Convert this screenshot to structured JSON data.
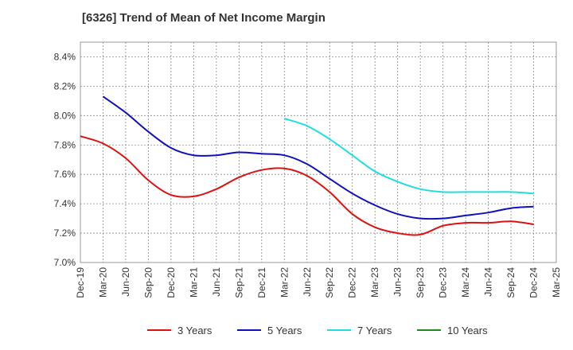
{
  "chart_data": {
    "type": "line",
    "title": "[6326]  Trend of Mean of Net Income Margin",
    "xlabel": "",
    "ylabel": "",
    "x": [
      "Dec-19",
      "Mar-20",
      "Jun-20",
      "Sep-20",
      "Dec-20",
      "Mar-21",
      "Jun-21",
      "Sep-21",
      "Dec-21",
      "Mar-22",
      "Jun-22",
      "Sep-22",
      "Dec-22",
      "Mar-23",
      "Jun-23",
      "Sep-23",
      "Dec-23",
      "Mar-24",
      "Jun-24",
      "Sep-24",
      "Dec-24",
      "Mar-25"
    ],
    "ylim": [
      7.0,
      8.5
    ],
    "yticks": [
      "7.0%",
      "7.2%",
      "7.4%",
      "7.6%",
      "7.8%",
      "8.0%",
      "8.2%",
      "8.4%"
    ],
    "ytick_values": [
      7.0,
      7.2,
      7.4,
      7.6,
      7.8,
      8.0,
      8.2,
      8.4
    ],
    "grid": true,
    "legend_position": "bottom",
    "series": [
      {
        "name": "3 Years",
        "color": "#dd1111",
        "values": [
          7.86,
          7.81,
          7.71,
          7.56,
          7.46,
          7.45,
          7.5,
          7.58,
          7.63,
          7.64,
          7.59,
          7.48,
          7.33,
          7.24,
          7.2,
          7.19,
          7.25,
          7.27,
          7.27,
          7.28,
          7.26,
          null
        ]
      },
      {
        "name": "5 Years",
        "color": "#1111bb",
        "values": [
          null,
          8.13,
          8.02,
          7.89,
          7.78,
          7.73,
          7.73,
          7.75,
          7.74,
          7.73,
          7.67,
          7.57,
          7.47,
          7.39,
          7.33,
          7.3,
          7.3,
          7.32,
          7.34,
          7.37,
          7.38,
          null
        ]
      },
      {
        "name": "7 Years",
        "color": "#22dddd",
        "values": [
          null,
          null,
          null,
          null,
          null,
          null,
          null,
          null,
          null,
          7.98,
          7.93,
          7.84,
          7.73,
          7.62,
          7.55,
          7.5,
          7.48,
          7.48,
          7.48,
          7.48,
          7.47,
          null
        ]
      },
      {
        "name": "10 Years",
        "color": "#228822",
        "values": [
          null,
          null,
          null,
          null,
          null,
          null,
          null,
          null,
          null,
          null,
          null,
          null,
          null,
          null,
          null,
          null,
          null,
          null,
          null,
          null,
          null,
          null
        ]
      }
    ]
  }
}
